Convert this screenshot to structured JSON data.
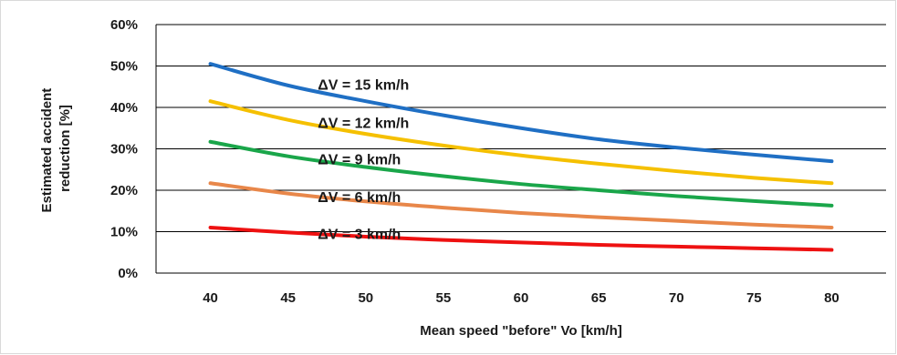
{
  "chart_data": {
    "type": "line",
    "title": "",
    "xlabel": "Mean speed \"before\" Vo [km/h]",
    "ylabel_lines": [
      "Estimated accident",
      "reduction [%]"
    ],
    "x_ticks": [
      "40",
      "45",
      "50",
      "55",
      "60",
      "65",
      "70",
      "75",
      "80"
    ],
    "y_ticks": [
      "0%",
      "10%",
      "20%",
      "30%",
      "40%",
      "50%",
      "60%"
    ],
    "xlim": [
      36.5,
      83.5
    ],
    "ylim": [
      0,
      60
    ],
    "grid": true,
    "x": [
      40,
      45,
      50,
      55,
      60,
      65,
      70,
      75,
      80
    ],
    "series": [
      {
        "name": "ΔV = 15 km/h",
        "color": "#1f6fc4",
        "values": [
          50.5,
          45.3,
          41.5,
          38.1,
          35.0,
          32.3,
          30.3,
          28.6,
          27.0
        ]
      },
      {
        "name": "ΔV = 12 km/h",
        "color": "#f5c000",
        "values": [
          41.5,
          37.0,
          33.6,
          30.8,
          28.4,
          26.4,
          24.6,
          23.0,
          21.7
        ]
      },
      {
        "name": "ΔV = 9 km/h",
        "color": "#1aa64a",
        "values": [
          31.7,
          28.2,
          25.6,
          23.4,
          21.5,
          20.0,
          18.6,
          17.4,
          16.3
        ]
      },
      {
        "name": "ΔV = 6 km/h",
        "color": "#e8874a",
        "values": [
          21.7,
          19.2,
          17.3,
          15.8,
          14.5,
          13.5,
          12.6,
          11.7,
          11.0
        ]
      },
      {
        "name": "ΔV = 3 km/h",
        "color": "#ee1111",
        "values": [
          11.0,
          9.8,
          8.8,
          8.0,
          7.4,
          6.8,
          6.4,
          6.0,
          5.6
        ]
      }
    ]
  }
}
